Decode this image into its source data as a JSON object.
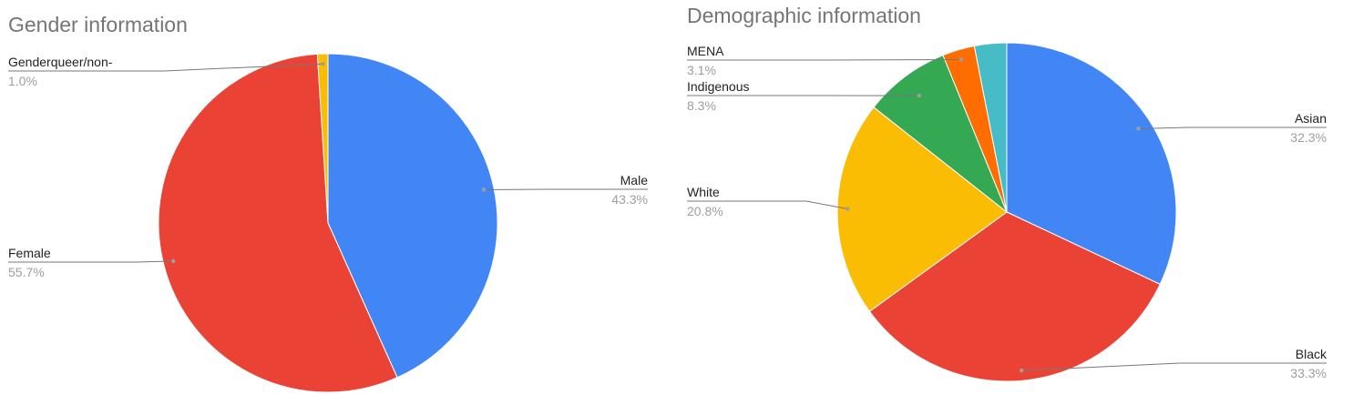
{
  "chart_data": [
    {
      "type": "pie",
      "title": "Gender information",
      "slices": [
        {
          "label": "Male",
          "percent_label": "43.3%",
          "value": 43.3,
          "color": "#4285F4"
        },
        {
          "label": "Female",
          "percent_label": "55.7%",
          "value": 55.7,
          "color": "#EA4335"
        },
        {
          "label": "Genderqueer/non-",
          "percent_label": "1.0%",
          "value": 1.0,
          "color": "#FBBC04"
        }
      ],
      "legend": "none"
    },
    {
      "type": "pie",
      "title": "Demographic information",
      "slices": [
        {
          "label": "Asian",
          "percent_label": "32.3%",
          "value": 32.3,
          "color": "#4285F4"
        },
        {
          "label": "Black",
          "percent_label": "33.3%",
          "value": 33.3,
          "color": "#EA4335"
        },
        {
          "label": "White",
          "percent_label": "20.8%",
          "value": 20.8,
          "color": "#FBBC04"
        },
        {
          "label": "Indigenous",
          "percent_label": "8.3%",
          "value": 8.3,
          "color": "#34A853"
        },
        {
          "label": "MENA",
          "percent_label": "3.1%",
          "value": 3.1,
          "color": "#FF6D01"
        },
        {
          "label": "",
          "percent_label": "",
          "value": 3.1,
          "color": "#46BDC6"
        }
      ],
      "legend": "none"
    }
  ]
}
